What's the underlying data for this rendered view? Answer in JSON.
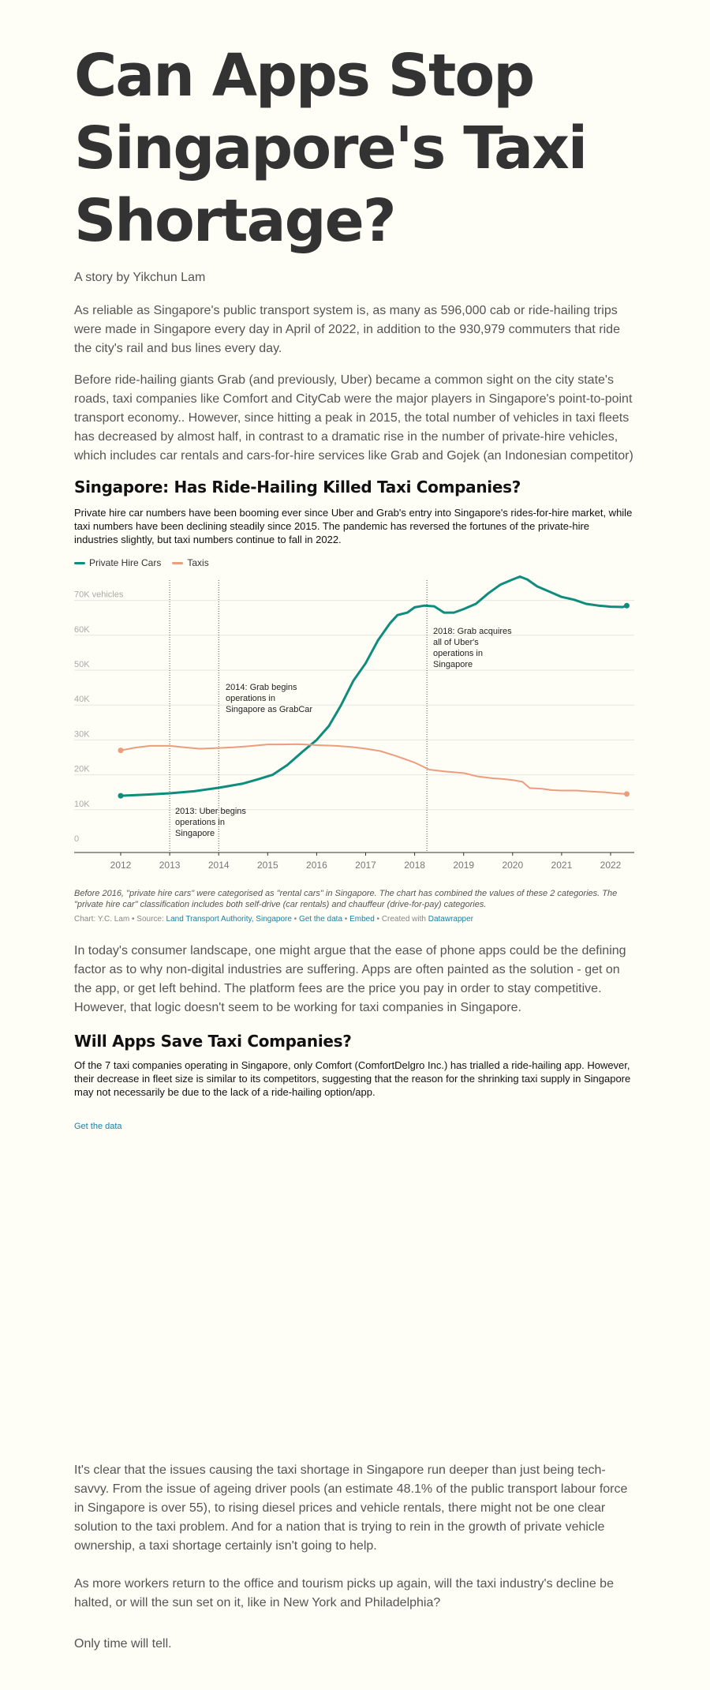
{
  "article": {
    "title": "Can Apps Stop Singapore's Taxi Shortage?",
    "byline": "A story by Yikchun Lam",
    "p1": "As reliable as Singapore's public transport system is, as many as 596,000 cab or ride-hailing trips were made in Singapore every day in April of 2022, in addition to the 930,979 commuters that ride the city's rail and bus lines every day.",
    "p2": "Before ride-hailing giants Grab (and previously, Uber) became a common sight on the city state's roads, taxi companies like Comfort and CityCab were the major players in Singapore's point-to-point transport economy.. However, since hitting a peak in 2015, the total number of vehicles in taxi fleets has decreased by almost half, in contrast to a dramatic rise in the number of private-hire vehicles, which includes car rentals and cars-for-hire services like Grab and Gojek (an Indonesian competitor)",
    "p3": "In today's consumer landscape, one might argue that the ease of phone apps could be the defining factor as to why non-digital industries are suffering. Apps are often painted as the solution - get on the app, or get left behind. The platform fees are the price you pay in order to stay competitive. However, that logic doesn't seem to be working for taxi companies in Singapore.",
    "p4": "It's clear that the issues causing the taxi shortage in Singapore run deeper than just being tech-savvy. From the issue of ageing driver pools (an estimate 48.1% of the public transport labour force in Singapore is over 55), to rising diesel prices and vehicle rentals, there might not be one clear solution to the taxi problem. And for a nation that is trying to rein in the growth of private vehicle ownership, a taxi shortage certainly isn't going to help.",
    "p5": "As more workers return to the office and tourism picks up again, will the taxi industry's decline be halted, or will the sun set on it, like in New York and Philadelphia?",
    "p6": "Only time will tell."
  },
  "chart1": {
    "title": "Singapore: Has Ride-Hailing Killed Taxi Companies?",
    "description": "Private hire car numbers have been booming ever since Uber and Grab's entry into Singapore's rides-for-hire market, while taxi numbers have been declining steadily since 2015. The pandemic has reversed the fortunes of the private-hire industries slightly, but taxi numbers continue to fall in 2022.",
    "notes": "Before 2016, \"private hire cars\" were categorised as \"rental cars\" in Singapore. The chart has combined the values of these 2 categories. The \"private hire car\" classification includes both self-drive (car rentals) and chauffeur (drive-for-pay) categories.",
    "source": {
      "prefix": "Chart: Y.C. Lam • Source: ",
      "source_link": "Land Transport Authority, Singapore",
      "sep1": " • ",
      "get_data": "Get the data",
      "sep2": " • ",
      "embed": "Embed",
      "created": " • Created with ",
      "tool": "Datawrapper"
    },
    "annotations": {
      "a1": [
        "2013: Uber begins",
        "operations in",
        "Singapore"
      ],
      "a2": [
        "2014: Grab begins",
        "operations in",
        "Singapore as GrabCar"
      ],
      "a3": [
        "2018: Grab acquires",
        "all of Uber's",
        "operations in",
        "Singapore"
      ]
    }
  },
  "chart2": {
    "title": "Will Apps Save Taxi Companies?",
    "description": "Of the 7 taxi companies operating in Singapore, only Comfort (ComfortDelgro Inc.) has trialled a ride-hailing app. However, their decrease in fleet size is similar to its competitors, suggesting that the reason for the shrinking taxi supply in Singapore may not necessarily be due to the lack of a ride-hailing option/app.",
    "link": "Get the data"
  },
  "chart_data": {
    "type": "line",
    "title": "Singapore: Has Ride-Hailing Killed Taxi Companies?",
    "xlabel": "",
    "ylabel": "",
    "y_unit_label": "70K vehicles",
    "xlim": [
      2011.5,
      2022.5
    ],
    "ylim": [
      0,
      78000
    ],
    "x_ticks": [
      2012,
      2013,
      2014,
      2015,
      2016,
      2017,
      2018,
      2019,
      2020,
      2021,
      2022
    ],
    "y_ticks": [
      0,
      10000,
      20000,
      30000,
      40000,
      50000,
      60000,
      70000
    ],
    "y_tick_labels": [
      "0",
      "10K",
      "20K",
      "30K",
      "40K",
      "50K",
      "60K",
      "70K vehicles"
    ],
    "grid": true,
    "legend_position": "top-left",
    "vlines": [
      2013.0,
      2014.0,
      2018.25
    ],
    "series": [
      {
        "name": "Private Hire Cars",
        "color": "#0e8c7c",
        "points": [
          [
            2012.0,
            14000
          ],
          [
            2012.5,
            14300
          ],
          [
            2013.0,
            14700
          ],
          [
            2013.5,
            15300
          ],
          [
            2014.0,
            16300
          ],
          [
            2014.5,
            17500
          ],
          [
            2014.8,
            18700
          ],
          [
            2015.1,
            20000
          ],
          [
            2015.4,
            22800
          ],
          [
            2015.7,
            26500
          ],
          [
            2016.0,
            30000
          ],
          [
            2016.25,
            34000
          ],
          [
            2016.5,
            40000
          ],
          [
            2016.75,
            47000
          ],
          [
            2017.0,
            52000
          ],
          [
            2017.25,
            58500
          ],
          [
            2017.5,
            63500
          ],
          [
            2017.65,
            65800
          ],
          [
            2017.85,
            66500
          ],
          [
            2018.0,
            68000
          ],
          [
            2018.2,
            68500
          ],
          [
            2018.4,
            68300
          ],
          [
            2018.6,
            66500
          ],
          [
            2018.8,
            66500
          ],
          [
            2019.0,
            67500
          ],
          [
            2019.25,
            69000
          ],
          [
            2019.5,
            72000
          ],
          [
            2019.75,
            74500
          ],
          [
            2020.0,
            76000
          ],
          [
            2020.15,
            76800
          ],
          [
            2020.3,
            76000
          ],
          [
            2020.5,
            74000
          ],
          [
            2020.75,
            72500
          ],
          [
            2021.0,
            71000
          ],
          [
            2021.25,
            70200
          ],
          [
            2021.5,
            69000
          ],
          [
            2021.75,
            68500
          ],
          [
            2022.0,
            68200
          ],
          [
            2022.25,
            68100
          ],
          [
            2022.33,
            68500
          ]
        ]
      },
      {
        "name": "Taxis",
        "color": "#ec9d7c",
        "points": [
          [
            2012.0,
            27000
          ],
          [
            2012.3,
            27800
          ],
          [
            2012.6,
            28300
          ],
          [
            2013.0,
            28300
          ],
          [
            2013.3,
            27900
          ],
          [
            2013.6,
            27500
          ],
          [
            2014.0,
            27700
          ],
          [
            2014.3,
            27900
          ],
          [
            2014.6,
            28200
          ],
          [
            2015.0,
            28700
          ],
          [
            2015.3,
            28700
          ],
          [
            2015.6,
            28800
          ],
          [
            2016.0,
            28500
          ],
          [
            2016.4,
            28300
          ],
          [
            2016.7,
            28000
          ],
          [
            2017.0,
            27500
          ],
          [
            2017.3,
            26800
          ],
          [
            2017.6,
            25500
          ],
          [
            2018.0,
            23500
          ],
          [
            2018.3,
            21500
          ],
          [
            2018.6,
            21000
          ],
          [
            2019.0,
            20500
          ],
          [
            2019.3,
            19500
          ],
          [
            2019.6,
            19000
          ],
          [
            2019.8,
            18800
          ],
          [
            2020.0,
            18500
          ],
          [
            2020.2,
            18000
          ],
          [
            2020.35,
            16200
          ],
          [
            2020.6,
            16000
          ],
          [
            2020.8,
            15600
          ],
          [
            2021.0,
            15500
          ],
          [
            2021.3,
            15500
          ],
          [
            2021.6,
            15200
          ],
          [
            2021.9,
            15000
          ],
          [
            2022.1,
            14700
          ],
          [
            2022.33,
            14500
          ]
        ]
      }
    ]
  }
}
